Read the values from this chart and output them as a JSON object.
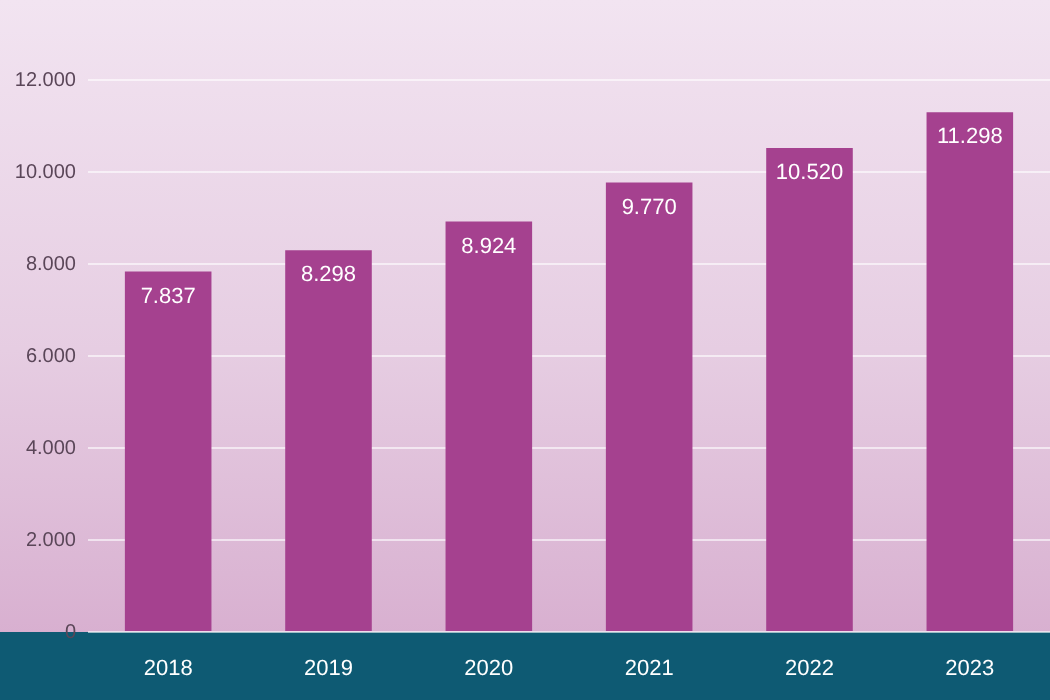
{
  "chart_data": {
    "type": "bar",
    "categories": [
      "2018",
      "2019",
      "2020",
      "2021",
      "2022",
      "2023"
    ],
    "values": [
      7837,
      8298,
      8924,
      9770,
      10520,
      11298
    ],
    "value_labels": [
      "7.837",
      "8.298",
      "8.924",
      "9.770",
      "10.520",
      "11.298"
    ],
    "color": "#a5418f",
    "ylim": [
      0,
      12000
    ],
    "yticks": [
      {
        "value": 0,
        "label": "0"
      },
      {
        "value": 2000,
        "label": "2.000"
      },
      {
        "value": 4000,
        "label": "4.000"
      },
      {
        "value": 6000,
        "label": "6.000"
      },
      {
        "value": 8000,
        "label": "8.000"
      },
      {
        "value": 10000,
        "label": "10.000"
      },
      {
        "value": 12000,
        "label": "12.000"
      }
    ],
    "grid": "y",
    "legend": false
  }
}
